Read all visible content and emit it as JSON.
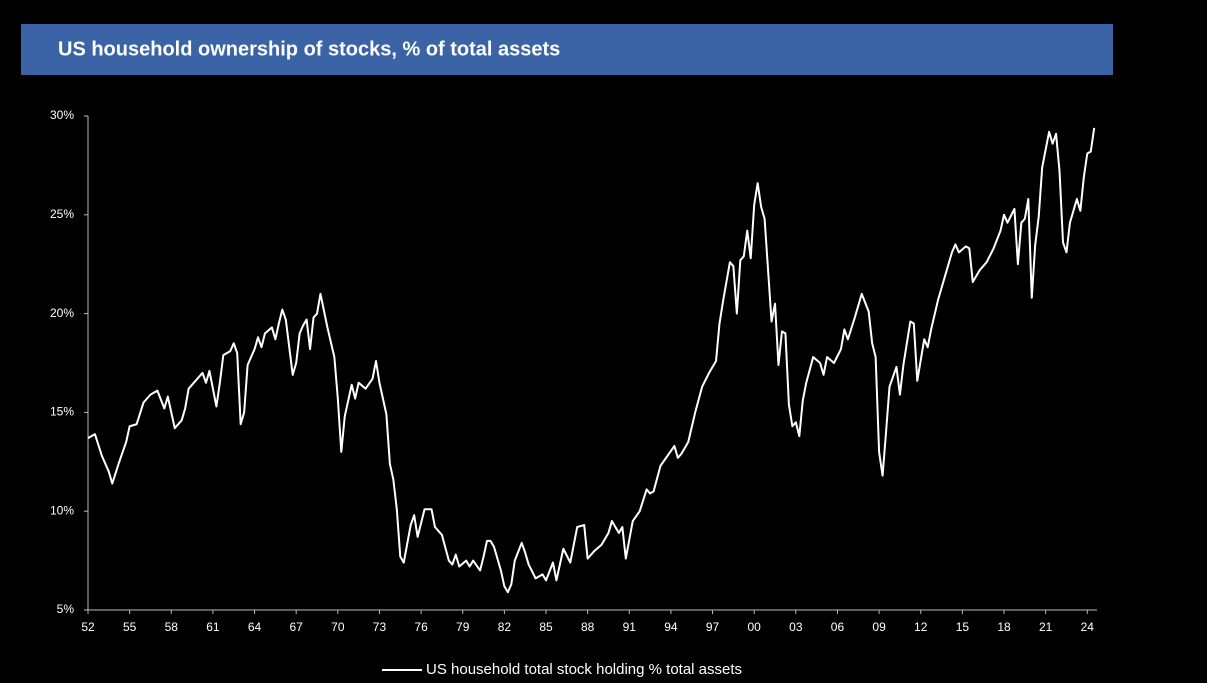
{
  "chart_data": {
    "type": "line",
    "title": "US household ownership of stocks, % of total assets",
    "x": [
      1952,
      1952.5,
      1953,
      1953.5,
      1953.75,
      1954.25,
      1954.75,
      1955,
      1955.5,
      1956,
      1956.5,
      1957,
      1957.5,
      1957.75,
      1958,
      1958.25,
      1958.75,
      1959,
      1959.25,
      1959.75,
      1960.25,
      1960.5,
      1960.75,
      1961.25,
      1961.5,
      1961.75,
      1962.25,
      1962.5,
      1962.75,
      1963,
      1963.25,
      1963.5,
      1964,
      1964.25,
      1964.5,
      1964.75,
      1965.25,
      1965.5,
      1965.75,
      1966,
      1966.25,
      1966.75,
      1967,
      1967.25,
      1967.5,
      1967.75,
      1968,
      1968.25,
      1968.5,
      1968.75,
      1969.25,
      1969.75,
      1970,
      1970.25,
      1970.5,
      1971,
      1971.25,
      1971.5,
      1972,
      1972.5,
      1972.75,
      1973,
      1973.5,
      1973.75,
      1974,
      1974.25,
      1974.5,
      1974.75,
      1975.25,
      1975.5,
      1975.75,
      1976.25,
      1976.75,
      1977,
      1977.5,
      1978,
      1978.25,
      1978.5,
      1978.75,
      1979.25,
      1979.5,
      1979.75,
      1980.25,
      1980.5,
      1980.75,
      1981,
      1981.25,
      1981.75,
      1982,
      1982.25,
      1982.5,
      1982.75,
      1983.25,
      1983.5,
      1983.75,
      1984.25,
      1984.75,
      1985,
      1985.5,
      1985.75,
      1986.25,
      1986.75,
      1987.25,
      1987.75,
      1988,
      1988.5,
      1989,
      1989.5,
      1989.75,
      1990.25,
      1990.5,
      1990.75,
      1991.25,
      1991.75,
      1992.25,
      1992.5,
      1992.75,
      1993.25,
      1993.75,
      1994.25,
      1994.5,
      1994.75,
      1995.25,
      1995.75,
      1996.25,
      1996.75,
      1997.25,
      1997.5,
      1997.75,
      1998.25,
      1998.5,
      1998.75,
      1999,
      1999.25,
      1999.5,
      1999.75,
      2000,
      2000.25,
      2000.5,
      2000.75,
      2001.25,
      2001.5,
      2001.75,
      2002,
      2002.25,
      2002.5,
      2002.75,
      2003,
      2003.25,
      2003.5,
      2003.75,
      2004.25,
      2004.75,
      2005,
      2005.25,
      2005.75,
      2006.25,
      2006.5,
      2006.75,
      2007.25,
      2007.75,
      2008.25,
      2008.5,
      2008.75,
      2009,
      2009.25,
      2009.5,
      2009.75,
      2010.25,
      2010.5,
      2010.75,
      2011.25,
      2011.5,
      2011.75,
      2012.25,
      2012.5,
      2012.75,
      2013.25,
      2013.75,
      2014.25,
      2014.5,
      2014.75,
      2015.25,
      2015.5,
      2015.75,
      2016.25,
      2016.75,
      2017.25,
      2017.75,
      2018,
      2018.25,
      2018.75,
      2019,
      2019.25,
      2019.5,
      2019.75,
      2020,
      2020.25,
      2020.5,
      2020.75,
      2021.25,
      2021.5,
      2021.75,
      2022,
      2022.25,
      2022.5,
      2022.75,
      2023.25,
      2023.5,
      2023.75,
      2024,
      2024.25,
      2024.5
    ],
    "series": [
      {
        "name": "US household total stock holding % total assets",
        "color": "#ffffff",
        "values": [
          13.7,
          13.9,
          12.8,
          12.0,
          11.4,
          12.5,
          13.5,
          14.3,
          14.4,
          15.5,
          15.9,
          16.1,
          15.2,
          15.8,
          15.0,
          14.2,
          14.6,
          15.2,
          16.2,
          16.6,
          17.0,
          16.5,
          17.1,
          15.3,
          16.5,
          17.9,
          18.1,
          18.5,
          18.0,
          14.4,
          15.0,
          17.4,
          18.2,
          18.8,
          18.3,
          19.0,
          19.3,
          18.7,
          19.5,
          20.2,
          19.7,
          16.9,
          17.5,
          19.0,
          19.4,
          19.7,
          18.2,
          19.8,
          20.0,
          21.0,
          19.3,
          17.8,
          15.7,
          13.0,
          14.8,
          16.4,
          15.7,
          16.5,
          16.2,
          16.7,
          17.6,
          16.5,
          14.9,
          12.4,
          11.6,
          10.1,
          7.7,
          7.4,
          9.3,
          9.8,
          8.7,
          10.1,
          10.1,
          9.2,
          8.8,
          7.5,
          7.3,
          7.8,
          7.2,
          7.5,
          7.2,
          7.5,
          7.0,
          7.7,
          8.5,
          8.5,
          8.2,
          7.0,
          6.2,
          5.9,
          6.3,
          7.5,
          8.4,
          7.9,
          7.3,
          6.6,
          6.8,
          6.5,
          7.4,
          6.5,
          8.1,
          7.4,
          9.2,
          9.3,
          7.6,
          8.0,
          8.3,
          8.9,
          9.5,
          8.9,
          9.2,
          7.6,
          9.5,
          10.0,
          11.1,
          10.9,
          11.0,
          12.3,
          12.8,
          13.3,
          12.7,
          12.9,
          13.5,
          15.0,
          16.3,
          17.0,
          17.6,
          19.5,
          20.6,
          22.6,
          22.4,
          20.0,
          22.7,
          22.9,
          24.2,
          22.8,
          25.5,
          26.6,
          25.4,
          24.8,
          19.6,
          20.5,
          17.4,
          19.1,
          19.0,
          15.4,
          14.3,
          14.5,
          13.8,
          15.6,
          16.5,
          17.8,
          17.5,
          16.9,
          17.8,
          17.5,
          18.2,
          19.2,
          18.7,
          19.8,
          21.0,
          20.1,
          18.5,
          17.8,
          13.0,
          11.8,
          14.0,
          16.3,
          17.3,
          15.9,
          17.4,
          19.6,
          19.5,
          16.6,
          18.7,
          18.3,
          19.2,
          20.7,
          21.9,
          23.1,
          23.5,
          23.1,
          23.4,
          23.3,
          21.6,
          22.2,
          22.6,
          23.3,
          24.2,
          25.0,
          24.6,
          25.3,
          22.5,
          24.6,
          24.8,
          25.8,
          20.8,
          23.5,
          24.9,
          27.4,
          29.2,
          28.6,
          29.1,
          27.2,
          23.6,
          23.1,
          24.6,
          25.8,
          25.2,
          26.9,
          28.1,
          28.2,
          29.4
        ]
      }
    ],
    "xlim": [
      1952,
      2024.7
    ],
    "ylim": [
      5,
      30
    ],
    "xticks": [
      {
        "value": 1952,
        "label": "52"
      },
      {
        "value": 1955,
        "label": "55"
      },
      {
        "value": 1958,
        "label": "58"
      },
      {
        "value": 1961,
        "label": "61"
      },
      {
        "value": 1964,
        "label": "64"
      },
      {
        "value": 1967,
        "label": "67"
      },
      {
        "value": 1970,
        "label": "70"
      },
      {
        "value": 1973,
        "label": "73"
      },
      {
        "value": 1976,
        "label": "76"
      },
      {
        "value": 1979,
        "label": "79"
      },
      {
        "value": 1982,
        "label": "82"
      },
      {
        "value": 1985,
        "label": "85"
      },
      {
        "value": 1988,
        "label": "88"
      },
      {
        "value": 1991,
        "label": "91"
      },
      {
        "value": 1994,
        "label": "94"
      },
      {
        "value": 1997,
        "label": "97"
      },
      {
        "value": 2000,
        "label": "00"
      },
      {
        "value": 2003,
        "label": "03"
      },
      {
        "value": 2006,
        "label": "06"
      },
      {
        "value": 2009,
        "label": "09"
      },
      {
        "value": 2012,
        "label": "12"
      },
      {
        "value": 2015,
        "label": "15"
      },
      {
        "value": 2018,
        "label": "18"
      },
      {
        "value": 2021,
        "label": "21"
      },
      {
        "value": 2024,
        "label": "24"
      }
    ],
    "yticks": [
      {
        "value": 5,
        "label": "5%"
      },
      {
        "value": 10,
        "label": "10%"
      },
      {
        "value": 15,
        "label": "15%"
      },
      {
        "value": 20,
        "label": "20%"
      },
      {
        "value": 25,
        "label": "25%"
      },
      {
        "value": 30,
        "label": "30%"
      }
    ],
    "grid": false,
    "legend": "bottom"
  }
}
